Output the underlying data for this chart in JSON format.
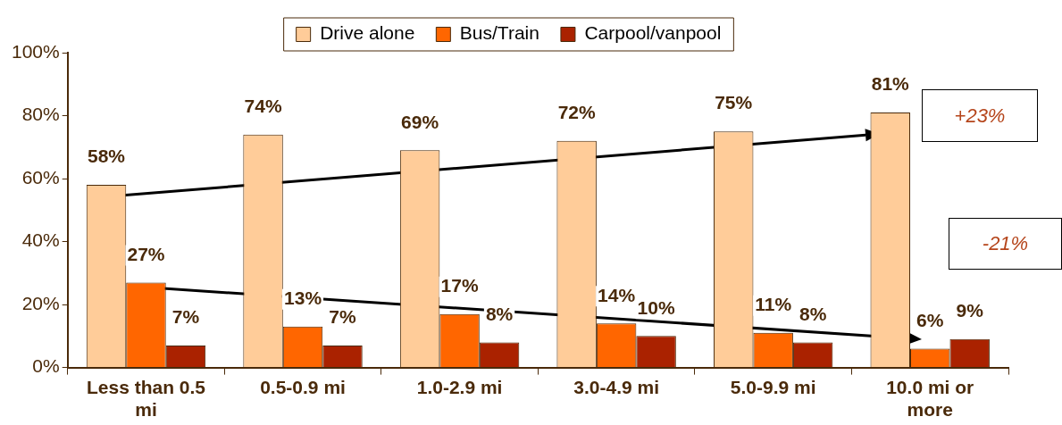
{
  "chart_data": {
    "type": "bar",
    "categories": [
      "Less than 0.5 mi",
      "0.5-0.9 mi",
      "1.0-2.9 mi",
      "3.0-4.9 mi",
      "5.0-9.9 mi",
      "10.0 mi or more"
    ],
    "series": [
      {
        "name": "Drive alone",
        "color": "#ffcc99",
        "values": [
          58,
          74,
          69,
          72,
          75,
          81
        ],
        "value_labels": [
          "58%",
          "74%",
          "69%",
          "72%",
          "75%",
          "81%"
        ]
      },
      {
        "name": "Bus/Train",
        "color": "#ff6600",
        "values": [
          27,
          13,
          17,
          14,
          11,
          6
        ],
        "value_labels": [
          "27%",
          "13%",
          "17%",
          "14%",
          "11%",
          "6%"
        ]
      },
      {
        "name": "Carpool/vanpool",
        "color": "#aa2200",
        "values": [
          7,
          7,
          8,
          10,
          8,
          9
        ],
        "value_labels": [
          "7%",
          "7%",
          "8%",
          "10%",
          "8%",
          "9%"
        ]
      }
    ],
    "ylim": [
      0,
      100
    ],
    "yticks": [
      {
        "value": 0,
        "label": "0%"
      },
      {
        "value": 20,
        "label": "20%"
      },
      {
        "value": 40,
        "label": "40%"
      },
      {
        "value": 60,
        "label": "60%"
      },
      {
        "value": 80,
        "label": "80%"
      },
      {
        "value": 100,
        "label": "100%"
      }
    ],
    "legend": "top",
    "annotations": [
      "+23%",
      "-21%"
    ]
  }
}
